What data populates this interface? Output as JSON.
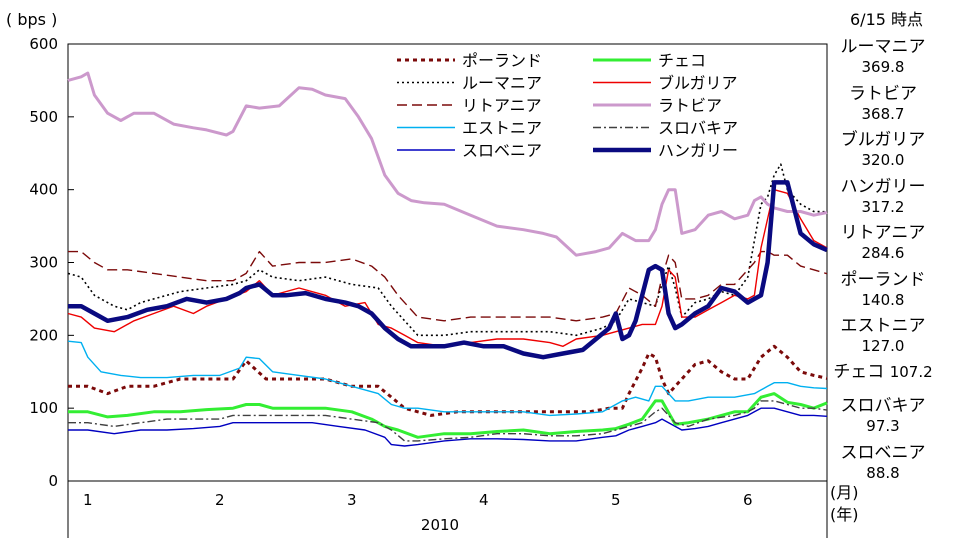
{
  "chart_data": {
    "type": "line",
    "ylabel": "( bps )",
    "xlabel_month": "(月)",
    "xlabel_year": "(年)",
    "year_label": "2010",
    "ylim": [
      0,
      600
    ],
    "yticks": [
      "0",
      "100",
      "200",
      "300",
      "400",
      "500",
      "600"
    ],
    "months": [
      "1",
      "2",
      "3",
      "4",
      "5",
      "6"
    ],
    "x_unit": "month",
    "xlim": [
      0.85,
      6.6
    ],
    "series": [
      {
        "name": "ポーランド",
        "color": "#7b0a0a",
        "style": "dotted-thick",
        "x": [
          0.85,
          1.0,
          1.15,
          1.3,
          1.5,
          1.7,
          1.9,
          2.1,
          2.2,
          2.35,
          2.5,
          2.8,
          3.0,
          3.2,
          3.3,
          3.4,
          3.6,
          3.8,
          4.0,
          4.2,
          4.4,
          4.6,
          4.8,
          4.95,
          5.05,
          5.1,
          5.2,
          5.25,
          5.3,
          5.35,
          5.4,
          5.5,
          5.6,
          5.7,
          5.8,
          5.9,
          6.0,
          6.1,
          6.2,
          6.3,
          6.4,
          6.5,
          6.6
        ],
        "y": [
          130,
          130,
          120,
          130,
          130,
          140,
          140,
          140,
          165,
          140,
          140,
          140,
          130,
          130,
          115,
          100,
          90,
          95,
          95,
          95,
          95,
          95,
          95,
          100,
          100,
          120,
          155,
          175,
          170,
          140,
          120,
          140,
          160,
          165,
          150,
          140,
          140,
          170,
          185,
          170,
          150,
          145,
          141
        ]
      },
      {
        "name": "ルーマニア",
        "color": "#000000",
        "style": "dotted",
        "x": [
          0.85,
          0.95,
          1.05,
          1.2,
          1.3,
          1.4,
          1.5,
          1.7,
          1.9,
          2.1,
          2.2,
          2.3,
          2.4,
          2.6,
          2.8,
          3.0,
          3.2,
          3.3,
          3.5,
          3.7,
          3.9,
          4.1,
          4.3,
          4.5,
          4.7,
          4.9,
          5.0,
          5.1,
          5.2,
          5.3,
          5.35,
          5.4,
          5.45,
          5.5,
          5.6,
          5.7,
          5.8,
          5.9,
          6.0,
          6.05,
          6.1,
          6.15,
          6.2,
          6.25,
          6.3,
          6.4,
          6.5,
          6.6
        ],
        "y": [
          285,
          280,
          255,
          240,
          235,
          245,
          250,
          260,
          265,
          270,
          275,
          290,
          280,
          275,
          280,
          270,
          265,
          240,
          200,
          200,
          205,
          205,
          205,
          205,
          200,
          210,
          220,
          250,
          245,
          240,
          270,
          295,
          265,
          225,
          245,
          250,
          260,
          255,
          280,
          330,
          380,
          390,
          420,
          435,
          400,
          380,
          370,
          369.8
        ]
      },
      {
        "name": "リトアニア",
        "color": "#7b0a0a",
        "style": "dashed",
        "x": [
          0.85,
          0.95,
          1.05,
          1.15,
          1.3,
          1.5,
          1.7,
          1.9,
          2.1,
          2.2,
          2.3,
          2.4,
          2.6,
          2.8,
          3.0,
          3.15,
          3.25,
          3.35,
          3.5,
          3.7,
          3.9,
          4.1,
          4.3,
          4.5,
          4.7,
          4.9,
          5.0,
          5.1,
          5.2,
          5.3,
          5.35,
          5.4,
          5.45,
          5.5,
          5.6,
          5.7,
          5.8,
          5.9,
          6.0,
          6.05,
          6.1,
          6.15,
          6.2,
          6.3,
          6.4,
          6.5,
          6.6
        ],
        "y": [
          315,
          315,
          300,
          290,
          290,
          285,
          280,
          275,
          275,
          285,
          315,
          295,
          300,
          300,
          305,
          295,
          280,
          255,
          225,
          220,
          225,
          225,
          225,
          225,
          220,
          225,
          230,
          265,
          255,
          240,
          280,
          310,
          300,
          250,
          250,
          255,
          270,
          270,
          290,
          300,
          315,
          315,
          310,
          310,
          295,
          290,
          284.6
        ]
      },
      {
        "name": "エストニア",
        "color": "#00b0f0",
        "style": "solid",
        "x": [
          0.85,
          0.95,
          1.0,
          1.1,
          1.25,
          1.4,
          1.6,
          1.8,
          2.0,
          2.15,
          2.2,
          2.3,
          2.4,
          2.6,
          2.8,
          3.0,
          3.2,
          3.3,
          3.4,
          3.5,
          3.7,
          3.9,
          4.1,
          4.3,
          4.5,
          4.7,
          4.9,
          5.05,
          5.15,
          5.25,
          5.3,
          5.35,
          5.45,
          5.55,
          5.7,
          5.9,
          6.05,
          6.15,
          6.2,
          6.3,
          6.4,
          6.5,
          6.6
        ],
        "y": [
          192,
          190,
          170,
          150,
          145,
          142,
          142,
          145,
          145,
          155,
          170,
          168,
          150,
          145,
          140,
          130,
          120,
          105,
          100,
          100,
          95,
          95,
          95,
          95,
          90,
          92,
          95,
          110,
          115,
          110,
          130,
          130,
          110,
          110,
          115,
          115,
          120,
          130,
          135,
          135,
          130,
          128,
          127.0
        ]
      },
      {
        "name": "スロベニア",
        "color": "#0000c0",
        "style": "solid",
        "x": [
          0.85,
          1.0,
          1.2,
          1.4,
          1.6,
          1.8,
          2.0,
          2.1,
          2.2,
          2.3,
          2.5,
          2.7,
          2.9,
          3.1,
          3.25,
          3.3,
          3.4,
          3.5,
          3.7,
          3.9,
          4.1,
          4.3,
          4.5,
          4.7,
          4.9,
          5.0,
          5.1,
          5.2,
          5.3,
          5.35,
          5.45,
          5.5,
          5.6,
          5.7,
          5.8,
          5.9,
          6.0,
          6.05,
          6.1,
          6.2,
          6.3,
          6.4,
          6.5,
          6.6
        ],
        "y": [
          70,
          70,
          65,
          70,
          70,
          72,
          75,
          80,
          80,
          80,
          80,
          80,
          75,
          70,
          60,
          50,
          48,
          50,
          55,
          58,
          58,
          57,
          55,
          55,
          60,
          62,
          70,
          75,
          80,
          85,
          75,
          70,
          72,
          75,
          80,
          85,
          90,
          95,
          100,
          100,
          95,
          90,
          90,
          88.8
        ]
      },
      {
        "name": "チェコ",
        "color": "#33ee33",
        "style": "thick",
        "x": [
          0.85,
          1.0,
          1.15,
          1.3,
          1.5,
          1.7,
          1.9,
          2.1,
          2.2,
          2.3,
          2.4,
          2.6,
          2.8,
          3.0,
          3.15,
          3.25,
          3.35,
          3.5,
          3.7,
          3.9,
          4.1,
          4.3,
          4.5,
          4.7,
          4.9,
          5.0,
          5.1,
          5.2,
          5.3,
          5.35,
          5.45,
          5.55,
          5.7,
          5.9,
          6.0,
          6.1,
          6.2,
          6.3,
          6.4,
          6.5,
          6.6
        ],
        "y": [
          95,
          95,
          88,
          90,
          95,
          95,
          98,
          100,
          105,
          105,
          100,
          100,
          100,
          95,
          85,
          75,
          70,
          60,
          65,
          65,
          68,
          70,
          65,
          68,
          70,
          72,
          78,
          85,
          110,
          110,
          78,
          80,
          85,
          95,
          95,
          115,
          120,
          108,
          105,
          100,
          107.2
        ]
      },
      {
        "name": "スロバキア",
        "color": "#404040",
        "style": "dashdot",
        "x": [
          0.85,
          1.0,
          1.2,
          1.4,
          1.6,
          1.8,
          2.0,
          2.1,
          2.2,
          2.4,
          2.6,
          2.8,
          3.0,
          3.2,
          3.3,
          3.4,
          3.5,
          3.7,
          3.9,
          4.1,
          4.3,
          4.5,
          4.7,
          4.9,
          5.0,
          5.1,
          5.2,
          5.3,
          5.35,
          5.45,
          5.55,
          5.7,
          5.9,
          6.0,
          6.05,
          6.1,
          6.2,
          6.3,
          6.4,
          6.5,
          6.6
        ],
        "y": [
          80,
          80,
          75,
          80,
          85,
          85,
          85,
          90,
          90,
          90,
          90,
          90,
          85,
          80,
          70,
          55,
          55,
          58,
          60,
          65,
          65,
          62,
          62,
          65,
          70,
          75,
          80,
          95,
          100,
          80,
          75,
          85,
          90,
          95,
          100,
          110,
          110,
          105,
          100,
          100,
          97.3
        ]
      },
      {
        "name": "ブルガリア",
        "color": "#ee0000",
        "style": "solid",
        "x": [
          0.85,
          0.95,
          1.05,
          1.2,
          1.35,
          1.5,
          1.65,
          1.8,
          1.9,
          2.05,
          2.2,
          2.3,
          2.4,
          2.6,
          2.8,
          2.95,
          3.1,
          3.2,
          3.3,
          3.4,
          3.5,
          3.7,
          3.9,
          4.1,
          4.3,
          4.5,
          4.6,
          4.7,
          4.9,
          5.0,
          5.1,
          5.2,
          5.3,
          5.35,
          5.4,
          5.45,
          5.5,
          5.6,
          5.7,
          5.8,
          5.9,
          6.0,
          6.05,
          6.1,
          6.2,
          6.3,
          6.4,
          6.5,
          6.6
        ],
        "y": [
          230,
          225,
          210,
          205,
          220,
          230,
          240,
          230,
          240,
          250,
          260,
          275,
          255,
          265,
          255,
          240,
          245,
          215,
          210,
          200,
          190,
          185,
          190,
          195,
          195,
          190,
          185,
          195,
          200,
          205,
          210,
          215,
          215,
          240,
          290,
          280,
          225,
          225,
          235,
          245,
          255,
          250,
          255,
          320,
          400,
          395,
          360,
          330,
          320.0
        ]
      },
      {
        "name": "ラトビア",
        "color": "#cc99cc",
        "style": "thick",
        "x": [
          0.85,
          0.95,
          1.0,
          1.05,
          1.15,
          1.25,
          1.35,
          1.5,
          1.65,
          1.8,
          1.9,
          2.05,
          2.1,
          2.2,
          2.3,
          2.45,
          2.6,
          2.7,
          2.8,
          2.95,
          3.05,
          3.15,
          3.25,
          3.35,
          3.45,
          3.55,
          3.7,
          3.9,
          4.1,
          4.3,
          4.45,
          4.55,
          4.7,
          4.85,
          4.95,
          5.05,
          5.15,
          5.25,
          5.3,
          5.35,
          5.4,
          5.45,
          5.5,
          5.6,
          5.7,
          5.8,
          5.9,
          6.0,
          6.05,
          6.1,
          6.15,
          6.2,
          6.3,
          6.4,
          6.5,
          6.6
        ],
        "y": [
          550,
          555,
          560,
          530,
          505,
          495,
          505,
          505,
          490,
          485,
          482,
          475,
          480,
          515,
          512,
          515,
          540,
          538,
          530,
          525,
          500,
          470,
          420,
          395,
          385,
          382,
          380,
          365,
          350,
          345,
          340,
          335,
          310,
          315,
          320,
          340,
          330,
          330,
          345,
          380,
          400,
          400,
          340,
          345,
          365,
          370,
          360,
          365,
          385,
          390,
          380,
          375,
          370,
          370,
          365,
          368.7
        ]
      },
      {
        "name": "ハンガリー",
        "color": "#0a0a80",
        "style": "extra-thick",
        "x": [
          0.85,
          0.95,
          1.05,
          1.15,
          1.3,
          1.45,
          1.6,
          1.75,
          1.9,
          2.05,
          2.15,
          2.2,
          2.3,
          2.4,
          2.5,
          2.65,
          2.8,
          2.95,
          3.05,
          3.15,
          3.25,
          3.35,
          3.45,
          3.55,
          3.7,
          3.85,
          4.0,
          4.15,
          4.3,
          4.45,
          4.6,
          4.75,
          4.85,
          4.95,
          5.0,
          5.05,
          5.1,
          5.15,
          5.25,
          5.3,
          5.35,
          5.4,
          5.45,
          5.5,
          5.6,
          5.7,
          5.8,
          5.9,
          6.0,
          6.05,
          6.1,
          6.15,
          6.2,
          6.3,
          6.4,
          6.5,
          6.6
        ],
        "y": [
          240,
          240,
          230,
          220,
          225,
          235,
          240,
          250,
          245,
          250,
          258,
          265,
          270,
          255,
          255,
          258,
          250,
          245,
          240,
          230,
          210,
          195,
          185,
          185,
          185,
          190,
          185,
          185,
          175,
          170,
          175,
          180,
          195,
          210,
          230,
          195,
          200,
          220,
          290,
          295,
          290,
          230,
          210,
          215,
          230,
          240,
          265,
          260,
          245,
          250,
          255,
          300,
          410,
          410,
          340,
          325,
          317.2
        ]
      }
    ]
  },
  "panel": {
    "date_label": "6/15 時点",
    "items": [
      {
        "name": "ルーマニア",
        "value": "369.8"
      },
      {
        "name": "ラトビア",
        "value": "368.7"
      },
      {
        "name": "ブルガリア",
        "value": "320.0"
      },
      {
        "name": "ハンガリー",
        "value": "317.2"
      },
      {
        "name": "リトアニア",
        "value": "284.6"
      },
      {
        "name": "ポーランド",
        "value": "140.8"
      },
      {
        "name": "エストニア",
        "value": "127.0"
      },
      {
        "name": "チェコ",
        "value": "107.2"
      },
      {
        "name": "スロバキア",
        "value": "97.3"
      },
      {
        "name": "スロベニア",
        "value": "88.8"
      }
    ]
  },
  "legend_order": [
    "ポーランド",
    "チェコ",
    "ルーマニア",
    "ブルガリア",
    "リトアニア",
    "ラトビア",
    "エストニア",
    "スロバキア",
    "スロベニア",
    "ハンガリー"
  ]
}
